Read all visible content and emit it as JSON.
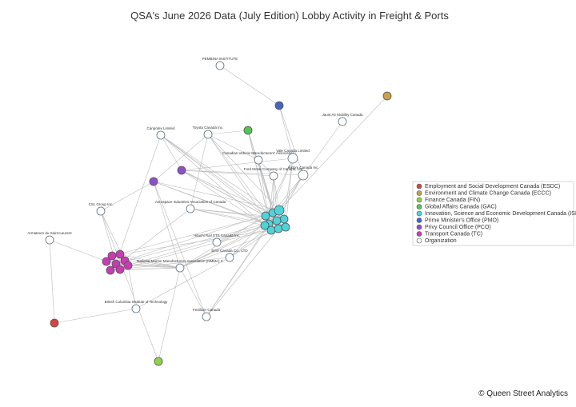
{
  "title": "QSA's June 2026 Data (July Edition) Lobby Activity in Freight & Ports",
  "nodes": [
    {
      "label": "PEMBINA INSTITUTE"
    },
    {
      "label": "Jaunt Air Mobility Canada"
    },
    {
      "label": "Canpotex Limited"
    },
    {
      "label": "Toyota Canada Inc."
    },
    {
      "label": "Canadian Vehicle Manufacturers' Association"
    },
    {
      "label": "Vale Canada Limited"
    },
    {
      "label": "Ford Motor Company of Canada, Ltd."
    },
    {
      "label": "Alstom Canada Inc."
    },
    {
      "label": "Aerospace Industries Association of Canada"
    },
    {
      "label": "CSL Group Inc."
    },
    {
      "label": "Armateurs du Saint-Laurent"
    },
    {
      "label": "Hitachi Rail STS Canada Inc."
    },
    {
      "label": "BYD Canada Co., LTD"
    },
    {
      "label": "National Marine Manufacturers Association (NMMA) C"
    },
    {
      "label": "British Columbia Institute of Technology"
    },
    {
      "label": "Fertilizer Canada"
    }
  ],
  "legend": [
    {
      "name": "Employment and Social Development Canada (ESDC)",
      "color": "#d9433f"
    },
    {
      "name": "Environment and Climate Change Canada (ECCC)",
      "color": "#c9a24a"
    },
    {
      "name": "Finance Canada (FIN)",
      "color": "#8fd14f"
    },
    {
      "name": "Global Affairs Canada (GAC)",
      "color": "#52c652"
    },
    {
      "name": "Innovation, Science and Economic Development Canada (ISED)",
      "color": "#4fd3da"
    },
    {
      "name": "Prime Minister's Office (PMO)",
      "color": "#4466c2"
    },
    {
      "name": "Privy Council Office (PCO)",
      "color": "#8e4fc9"
    },
    {
      "name": "Transport Canada (TC)",
      "color": "#c93bb5"
    },
    {
      "name": "Organization",
      "color": "#ffffff"
    }
  ],
  "footer": "© Queen Street Analytics"
}
